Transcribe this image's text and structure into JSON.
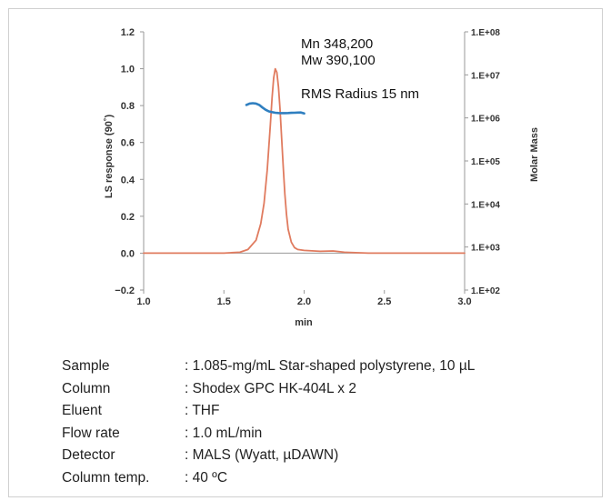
{
  "colors": {
    "ls_trace": "#e07b5f",
    "molar_mass_trace": "#2f7fc0",
    "axis": "#999999",
    "frame_border": "#cfcfcf"
  },
  "chart_data": {
    "type": "line",
    "title": "",
    "xlabel": "min",
    "ylabel": "LS response (90˚)",
    "y2label": "Molar Mass",
    "xlim": [
      1.0,
      3.0
    ],
    "ylim": [
      -0.2,
      1.2
    ],
    "y2_scale": "log",
    "y2lim": [
      100,
      100000000
    ],
    "grid": false,
    "x_ticks": [
      "1.0",
      "1.5",
      "2.0",
      "2.5",
      "3.0"
    ],
    "y_ticks": [
      "1.2",
      "1.0",
      "0.8",
      "0.6",
      "0.4",
      "0.2",
      "0.0",
      "−0.2"
    ],
    "y2_ticks": [
      "1.E+08",
      "1.E+07",
      "1.E+06",
      "1.E+05",
      "1.E+04",
      "1.E+03",
      "1.E+02"
    ],
    "series": [
      {
        "axis": "left",
        "color": "#e07b5f",
        "x": [
          1.0,
          1.5,
          1.6,
          1.65,
          1.7,
          1.73,
          1.75,
          1.77,
          1.79,
          1.8,
          1.81,
          1.82,
          1.83,
          1.84,
          1.85,
          1.86,
          1.87,
          1.88,
          1.89,
          1.9,
          1.92,
          1.94,
          1.96,
          2.0,
          2.1,
          2.18,
          2.2,
          2.25,
          2.4,
          3.0
        ],
        "y": [
          0.0,
          0.0,
          0.005,
          0.02,
          0.07,
          0.16,
          0.27,
          0.45,
          0.7,
          0.84,
          0.95,
          1.0,
          0.98,
          0.9,
          0.78,
          0.62,
          0.46,
          0.32,
          0.21,
          0.13,
          0.06,
          0.03,
          0.02,
          0.015,
          0.01,
          0.012,
          0.01,
          0.005,
          0.0,
          0.0
        ]
      },
      {
        "axis": "right",
        "color": "#2f7fc0",
        "x": [
          1.64,
          1.66,
          1.68,
          1.7,
          1.72,
          1.74,
          1.76,
          1.78,
          1.8,
          1.82,
          1.84,
          1.86,
          1.88,
          1.9,
          1.92,
          1.94,
          1.96,
          1.98,
          2.0
        ],
        "y": [
          2000000,
          2150000,
          2200000,
          2150000,
          2000000,
          1750000,
          1550000,
          1420000,
          1360000,
          1320000,
          1300000,
          1290000,
          1290000,
          1300000,
          1310000,
          1320000,
          1330000,
          1340000,
          1270000
        ]
      }
    ],
    "annotations": [
      "Mn  348,200",
      "Mw  390,100",
      "RMS Radius 15 nm"
    ]
  },
  "conditions": [
    {
      "label": "Sample",
      "value": ": 1.085-mg/mL Star-shaped polystyrene, 10 µL"
    },
    {
      "label": "Column",
      "value": ": Shodex GPC HK-404L x 2"
    },
    {
      "label": "Eluent",
      "value": ": THF"
    },
    {
      "label": "Flow rate",
      "value": ": 1.0 mL/min"
    },
    {
      "label": "Detector",
      "value": ": MALS (Wyatt, µDAWN)"
    },
    {
      "label": "Column temp.",
      "value": ": 40 ºC"
    }
  ]
}
